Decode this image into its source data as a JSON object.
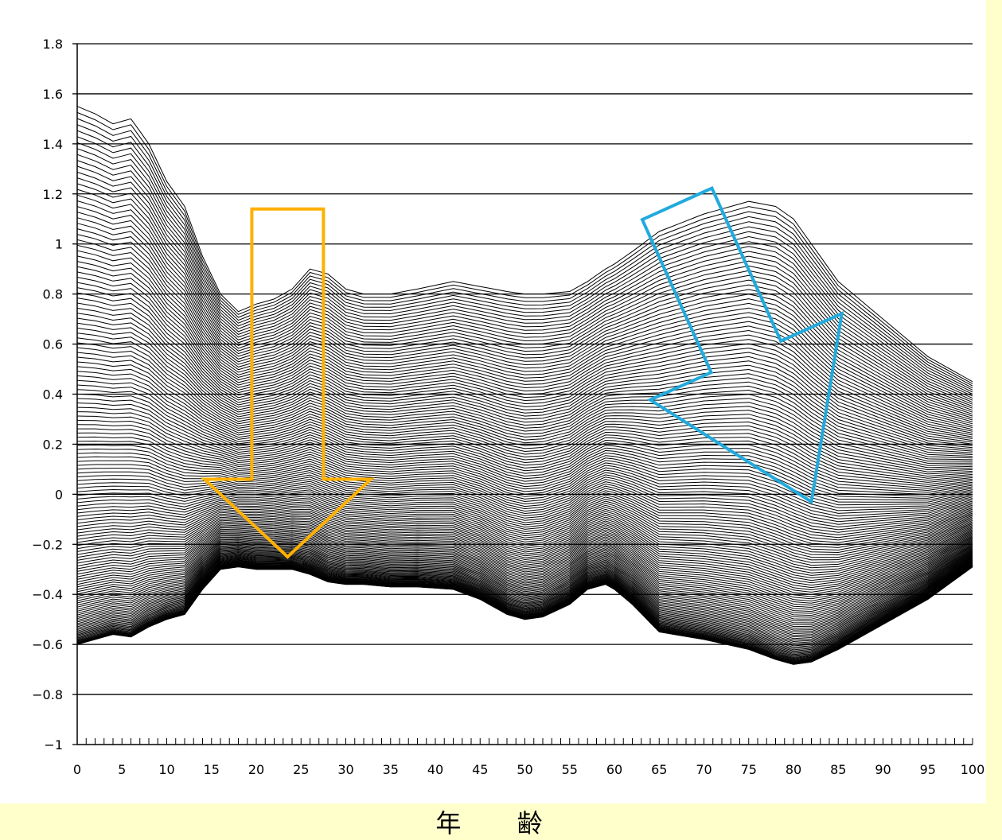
{
  "chart_data": {
    "type": "line",
    "title": "",
    "xlabel": "年 齢",
    "ylabel": "",
    "xlim": [
      0,
      100
    ],
    "ylim": [
      -1,
      1.8
    ],
    "x_ticks": [
      0,
      5,
      10,
      15,
      20,
      25,
      30,
      35,
      40,
      45,
      50,
      55,
      60,
      65,
      70,
      75,
      80,
      85,
      90,
      95,
      100
    ],
    "y_ticks": [
      -1,
      -0.8,
      -0.6,
      -0.4,
      -0.2,
      0,
      0.2,
      0.4,
      0.6,
      0.8,
      1,
      1.2,
      1.4,
      1.6,
      1.8
    ],
    "y_tick_labels": [
      "−1",
      "−0.8",
      "−0.6",
      "−0.4",
      "−0.2",
      "0",
      "0.2",
      "0.4",
      "0.6",
      "0.8",
      "1",
      "1.2",
      "1.4",
      "1.6",
      "1.8"
    ],
    "grid": true,
    "legend": "none",
    "series_count": 150,
    "envelope": {
      "x": [
        0,
        2,
        4,
        6,
        8,
        10,
        12,
        14,
        16,
        18,
        20,
        22,
        24,
        26,
        28,
        30,
        32,
        35,
        38,
        42,
        45,
        48,
        50,
        52,
        55,
        57,
        59,
        60,
        62,
        65,
        70,
        75,
        78,
        80,
        82,
        85,
        90,
        95,
        100
      ],
      "upper": [
        1.55,
        1.52,
        1.48,
        1.5,
        1.4,
        1.25,
        1.15,
        0.95,
        0.8,
        0.73,
        0.76,
        0.78,
        0.82,
        0.9,
        0.88,
        0.82,
        0.8,
        0.8,
        0.82,
        0.85,
        0.83,
        0.81,
        0.8,
        0.8,
        0.81,
        0.85,
        0.9,
        0.92,
        0.97,
        1.05,
        1.12,
        1.17,
        1.15,
        1.1,
        1.0,
        0.85,
        0.7,
        0.55,
        0.45
      ],
      "lower": [
        -0.6,
        -0.58,
        -0.56,
        -0.57,
        -0.53,
        -0.5,
        -0.48,
        -0.38,
        -0.3,
        -0.29,
        -0.3,
        -0.3,
        -0.3,
        -0.32,
        -0.35,
        -0.36,
        -0.36,
        -0.37,
        -0.37,
        -0.38,
        -0.42,
        -0.48,
        -0.5,
        -0.49,
        -0.44,
        -0.38,
        -0.36,
        -0.38,
        -0.44,
        -0.55,
        -0.58,
        -0.62,
        -0.66,
        -0.68,
        -0.67,
        -0.62,
        -0.52,
        -0.42,
        -0.29
      ]
    },
    "annotations": [
      {
        "shape": "down-arrow",
        "color": "#ffb000",
        "x_range": [
          19.5,
          27.5
        ],
        "from_y": 1.14,
        "to_y": -0.25
      },
      {
        "shape": "diagonal-arrow",
        "color": "#22aadd",
        "from": [
          67,
          1.16
        ],
        "to": [
          82,
          -0.03
        ]
      }
    ]
  }
}
